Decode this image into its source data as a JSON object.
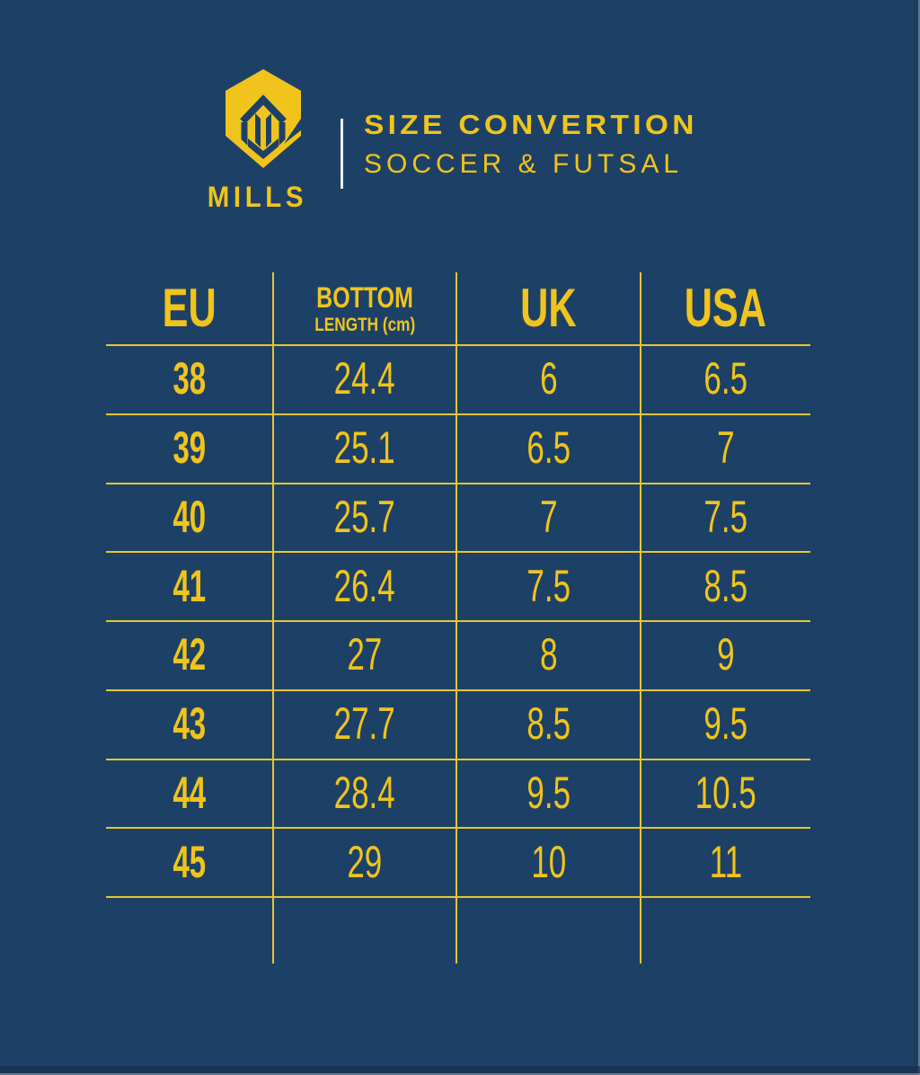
{
  "colors": {
    "background": "#1D4166",
    "accent_yellow": "#F0C41C",
    "grid_line_yellow": "#E7C62E",
    "divider_white": "#E8EEF2"
  },
  "brand": {
    "name": "MILLS",
    "logo": "hexagon-m-mark"
  },
  "header": {
    "title": "SIZE CONVERTION",
    "subtitle": "SOCCER & FUTSAL"
  },
  "table": {
    "columns": [
      {
        "label": "EU",
        "sublabel": ""
      },
      {
        "label": "BOTTOM",
        "sublabel": "LENGTH (cm)"
      },
      {
        "label": "UK",
        "sublabel": ""
      },
      {
        "label": "USA",
        "sublabel": ""
      }
    ],
    "rows": [
      [
        "38",
        "24.4",
        "6",
        "6.5"
      ],
      [
        "39",
        "25.1",
        "6.5",
        "7"
      ],
      [
        "40",
        "25.7",
        "7",
        "7.5"
      ],
      [
        "41",
        "26.4",
        "7.5",
        "8.5"
      ],
      [
        "42",
        "27",
        "8",
        "9"
      ],
      [
        "43",
        "27.7",
        "8.5",
        "9.5"
      ],
      [
        "44",
        "28.4",
        "9.5",
        "10.5"
      ],
      [
        "45",
        "29",
        "10",
        "11"
      ]
    ]
  },
  "chart_data": {
    "type": "table",
    "title": "SIZE CONVERTION",
    "subtitle": "SOCCER & FUTSAL",
    "columns": [
      "EU",
      "BOTTOM LENGTH (cm)",
      "UK",
      "USA"
    ],
    "rows": [
      [
        38,
        24.4,
        6,
        6.5
      ],
      [
        39,
        25.1,
        6.5,
        7
      ],
      [
        40,
        25.7,
        7,
        7.5
      ],
      [
        41,
        26.4,
        7.5,
        8.5
      ],
      [
        42,
        27,
        8,
        9
      ],
      [
        43,
        27.7,
        8.5,
        9.5
      ],
      [
        44,
        28.4,
        9.5,
        10.5
      ],
      [
        45,
        29,
        10,
        11
      ]
    ]
  }
}
